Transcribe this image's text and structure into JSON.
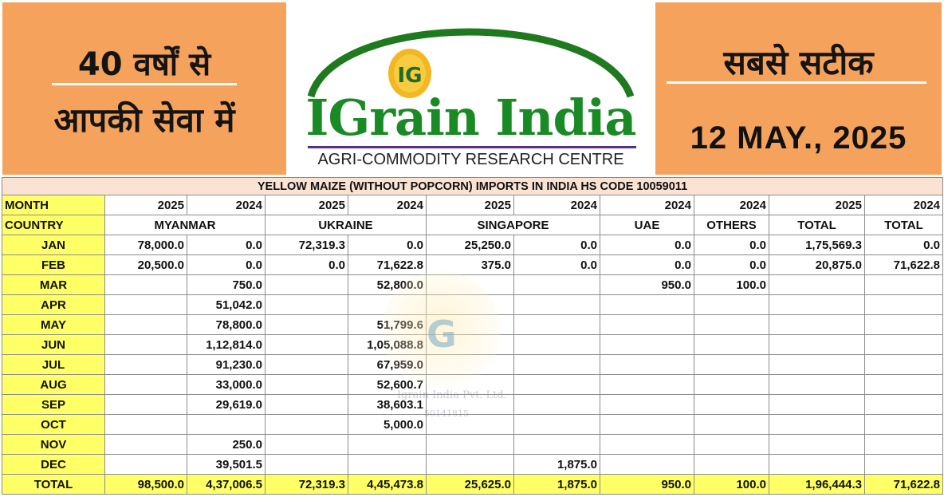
{
  "banner": {
    "left_line1": "40 वर्षों से",
    "left_line2": "आपकी सेवा में",
    "right_line1": "सबसे सटीक",
    "date": "12 MAY., 2025",
    "brand": "IGrain India",
    "tagline": "AGRI-COMMODITY RESEARCH CENTRE",
    "logo_letters": "IG",
    "colors": {
      "orange": "#f5a35c",
      "green": "#1a8a24",
      "purple": "#5b2d86",
      "yellow": "#ffff66"
    }
  },
  "watermark": {
    "company": "Igrain India Pvt. Ltd.",
    "number": "50141815",
    "letter": "G"
  },
  "table": {
    "title": "YELLOW MAIZE (WITHOUT POPCORN) IMPORTS IN INDIA HS CODE 10059011",
    "month_label": "MONTH",
    "country_label": "COUNTRY",
    "years": [
      "2025",
      "2024",
      "2025",
      "2024",
      "2025",
      "2024",
      "2024",
      "2024",
      "2025",
      "2024"
    ],
    "countries": [
      "MYANMAR",
      "UKRAINE",
      "SINGAPORE",
      "UAE",
      "OTHERS",
      "TOTAL",
      "TOTAL"
    ],
    "rows": [
      {
        "month": "JAN",
        "values": [
          "78,000.0",
          "0.0",
          "72,319.3",
          "0.0",
          "25,250.0",
          "0.0",
          "0.0",
          "0.0",
          "1,75,569.3",
          "0.0"
        ]
      },
      {
        "month": "FEB",
        "values": [
          "20,500.0",
          "0.0",
          "0.0",
          "71,622.8",
          "375.0",
          "0.0",
          "0.0",
          "0.0",
          "20,875.0",
          "71,622.8"
        ]
      },
      {
        "month": "MAR",
        "values": [
          "",
          "750.0",
          "",
          "52,800.0",
          "",
          "",
          "950.0",
          "100.0",
          "",
          ""
        ]
      },
      {
        "month": "APR",
        "values": [
          "",
          "51,042.0",
          "",
          "",
          "",
          "",
          "",
          "",
          "",
          ""
        ]
      },
      {
        "month": "MAY",
        "values": [
          "",
          "78,800.0",
          "",
          "51,799.6",
          "",
          "",
          "",
          "",
          "",
          ""
        ]
      },
      {
        "month": "JUN",
        "values": [
          "",
          "1,12,814.0",
          "",
          "1,05,088.8",
          "",
          "",
          "",
          "",
          "",
          ""
        ]
      },
      {
        "month": "JUL",
        "values": [
          "",
          "91,230.0",
          "",
          "67,959.0",
          "",
          "",
          "",
          "",
          "",
          ""
        ]
      },
      {
        "month": "AUG",
        "values": [
          "",
          "33,000.0",
          "",
          "52,600.7",
          "",
          "",
          "",
          "",
          "",
          ""
        ]
      },
      {
        "month": "SEP",
        "values": [
          "",
          "29,619.0",
          "",
          "38,603.1",
          "",
          "",
          "",
          "",
          "",
          ""
        ]
      },
      {
        "month": "OCT",
        "values": [
          "",
          "",
          "",
          "5,000.0",
          "",
          "",
          "",
          "",
          "",
          ""
        ]
      },
      {
        "month": "NOV",
        "values": [
          "",
          "250.0",
          "",
          "",
          "",
          "",
          "",
          "",
          "",
          ""
        ]
      },
      {
        "month": "DEC",
        "values": [
          "",
          "39,501.5",
          "",
          "",
          "",
          "1,875.0",
          "",
          "",
          "",
          ""
        ]
      }
    ],
    "total": {
      "label": "TOTAL",
      "values": [
        "98,500.0",
        "4,37,006.5",
        "72,319.3",
        "4,45,473.8",
        "25,625.0",
        "1,875.0",
        "950.0",
        "100.0",
        "1,96,444.3",
        "71,622.8"
      ]
    }
  }
}
